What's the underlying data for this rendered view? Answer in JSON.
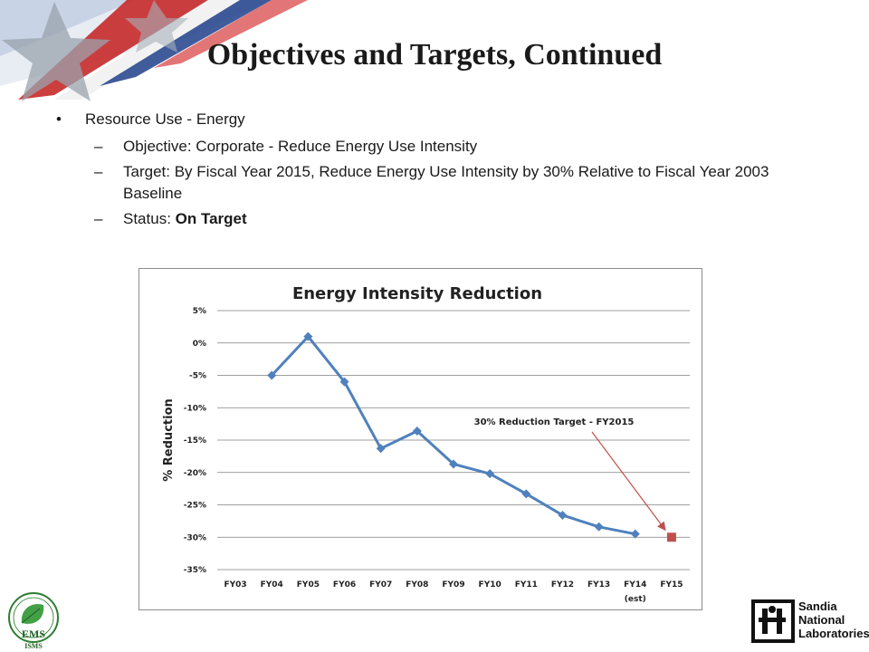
{
  "slide": {
    "title": "Objectives and Targets, Continued",
    "bullet": "Resource Use - Energy",
    "sub_items": [
      {
        "label": "Objective:  Corporate - Reduce Energy Use Intensity"
      },
      {
        "label": "Target: By Fiscal Year 2015, Reduce Energy Use Intensity by 30% Relative to Fiscal Year 2003 Baseline"
      },
      {
        "prefix": "Status: ",
        "value": "On Target"
      }
    ]
  },
  "logos": {
    "ems": {
      "letters": "EMS",
      "sub": "ISMS",
      "ring": "Environmental Management System"
    },
    "sandia": {
      "line1": "Sandia",
      "line2": "National",
      "line3": "Laboratories"
    }
  },
  "colors": {
    "series": "#4f81bd",
    "target": "#c0504d",
    "arrow": "#c0504d",
    "grid": "#7f7f7f"
  },
  "chart_data": {
    "type": "line",
    "title": "Energy Intensity Reduction",
    "ylabel": "% Reduction",
    "xlabel": "",
    "categories": [
      "FY03",
      "FY04",
      "FY05",
      "FY06",
      "FY07",
      "FY08",
      "FY09",
      "FY10",
      "FY11",
      "FY12",
      "FY13",
      "FY14",
      "FY15"
    ],
    "category_sublabels": {
      "FY14": "(est)"
    },
    "y_ticks": [
      "5%",
      "0%",
      "-5%",
      "-10%",
      "-15%",
      "-20%",
      "-25%",
      "-30%",
      "-35%"
    ],
    "ylim": [
      -35,
      5
    ],
    "grid": true,
    "series": [
      {
        "values": [
          null,
          -5,
          1,
          -6,
          -16.3,
          -13.6,
          -18.7,
          -20.2,
          -23.3,
          -26.6,
          -28.4,
          -29.5,
          null
        ]
      }
    ],
    "target_point": {
      "category": "FY15",
      "value": -30
    },
    "annotation": {
      "text": "30% Reduction Target - FY2015",
      "points_to": "FY15"
    }
  }
}
